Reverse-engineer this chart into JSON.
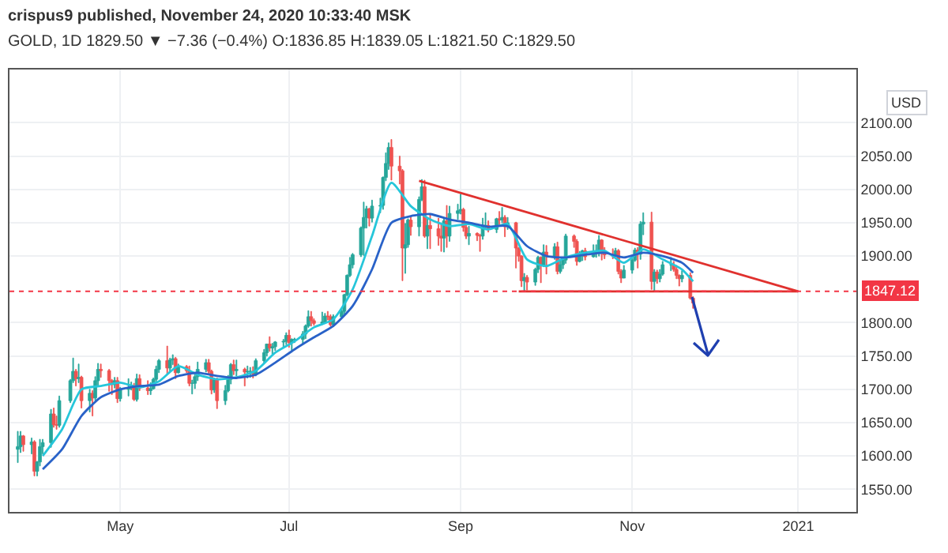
{
  "chart_data": {
    "type": "candlestick",
    "title": "crispus9 published, November 24, 2020 10:33:40 MSK",
    "subtitle": "GOLD, 1D 1829.50 ▼ −7.36 (−0.4%) O:1836.85 H:1839.05 L:1821.50 C:1829.50",
    "annotations": [
      "USD"
    ],
    "x": [
      "2020-03-25",
      "2020-03-26",
      "2020-03-27",
      "2020-03-30",
      "2020-03-31",
      "2020-04-01",
      "2020-04-02",
      "2020-04-03",
      "2020-04-06",
      "2020-04-07",
      "2020-04-08",
      "2020-04-09",
      "2020-04-13",
      "2020-04-14",
      "2020-04-15",
      "2020-04-16",
      "2020-04-17",
      "2020-04-20",
      "2020-04-21",
      "2020-04-22",
      "2020-04-23",
      "2020-04-24",
      "2020-04-27",
      "2020-04-28",
      "2020-04-29",
      "2020-04-30",
      "2020-05-01",
      "2020-05-04",
      "2020-05-05",
      "2020-05-06",
      "2020-05-07",
      "2020-05-08",
      "2020-05-11",
      "2020-05-12",
      "2020-05-13",
      "2020-05-14",
      "2020-05-15",
      "2020-05-18",
      "2020-05-19",
      "2020-05-20",
      "2020-05-21",
      "2020-05-22",
      "2020-05-25",
      "2020-05-26",
      "2020-05-27",
      "2020-05-28",
      "2020-05-29",
      "2020-06-01",
      "2020-06-02",
      "2020-06-03",
      "2020-06-04",
      "2020-06-05",
      "2020-06-08",
      "2020-06-09",
      "2020-06-10",
      "2020-06-11",
      "2020-06-12",
      "2020-06-15",
      "2020-06-16",
      "2020-06-17",
      "2020-06-18",
      "2020-06-19",
      "2020-06-22",
      "2020-06-23",
      "2020-06-24",
      "2020-06-25",
      "2020-06-26",
      "2020-06-29",
      "2020-06-30",
      "2020-07-01",
      "2020-07-02",
      "2020-07-03",
      "2020-07-06",
      "2020-07-07",
      "2020-07-08",
      "2020-07-09",
      "2020-07-10",
      "2020-07-13",
      "2020-07-14",
      "2020-07-15",
      "2020-07-16",
      "2020-07-17",
      "2020-07-20",
      "2020-07-21",
      "2020-07-22",
      "2020-07-23",
      "2020-07-24",
      "2020-07-27",
      "2020-07-28",
      "2020-07-29",
      "2020-07-30",
      "2020-07-31",
      "2020-08-03",
      "2020-08-04",
      "2020-08-05",
      "2020-08-06",
      "2020-08-07",
      "2020-08-10",
      "2020-08-11",
      "2020-08-12",
      "2020-08-13",
      "2020-08-14",
      "2020-08-17",
      "2020-08-18",
      "2020-08-19",
      "2020-08-20",
      "2020-08-21",
      "2020-08-24",
      "2020-08-25",
      "2020-08-26",
      "2020-08-27",
      "2020-08-28",
      "2020-08-31",
      "2020-09-01",
      "2020-09-02",
      "2020-09-03",
      "2020-09-04",
      "2020-09-07",
      "2020-09-08",
      "2020-09-09",
      "2020-09-10",
      "2020-09-11",
      "2020-09-14",
      "2020-09-15",
      "2020-09-16",
      "2020-09-17",
      "2020-09-18",
      "2020-09-21",
      "2020-09-22",
      "2020-09-23",
      "2020-09-24",
      "2020-09-25",
      "2020-09-28",
      "2020-09-29",
      "2020-09-30",
      "2020-10-01",
      "2020-10-02",
      "2020-10-05",
      "2020-10-06",
      "2020-10-07",
      "2020-10-08",
      "2020-10-09",
      "2020-10-12",
      "2020-10-13",
      "2020-10-14",
      "2020-10-15",
      "2020-10-16",
      "2020-10-19",
      "2020-10-20",
      "2020-10-21",
      "2020-10-22",
      "2020-10-23",
      "2020-10-26",
      "2020-10-27",
      "2020-10-28",
      "2020-10-29",
      "2020-10-30",
      "2020-11-02",
      "2020-11-03",
      "2020-11-04",
      "2020-11-05",
      "2020-11-06",
      "2020-11-09",
      "2020-11-10",
      "2020-11-11",
      "2020-11-12",
      "2020-11-13",
      "2020-11-16",
      "2020-11-17",
      "2020-11-18",
      "2020-11-19",
      "2020-11-20",
      "2020-11-23",
      "2020-11-24"
    ],
    "ohlc": [
      [
        1610,
        1637,
        1590,
        1614
      ],
      [
        1614,
        1637,
        1605,
        1630
      ],
      [
        1630,
        1631,
        1607,
        1617
      ],
      [
        1617,
        1627,
        1603,
        1621
      ],
      [
        1621,
        1623,
        1570,
        1577
      ],
      [
        1577,
        1592,
        1570,
        1591
      ],
      [
        1591,
        1625,
        1585,
        1614
      ],
      [
        1614,
        1625,
        1603,
        1620
      ],
      [
        1620,
        1670,
        1613,
        1663
      ],
      [
        1663,
        1672,
        1643,
        1647
      ],
      [
        1647,
        1660,
        1640,
        1646
      ],
      [
        1646,
        1690,
        1643,
        1683
      ],
      [
        1683,
        1715,
        1680,
        1713
      ],
      [
        1713,
        1747,
        1710,
        1727
      ],
      [
        1727,
        1730,
        1705,
        1716
      ],
      [
        1716,
        1738,
        1710,
        1718
      ],
      [
        1718,
        1720,
        1672,
        1683
      ],
      [
        1683,
        1700,
        1666,
        1694
      ],
      [
        1694,
        1698,
        1660,
        1687
      ],
      [
        1687,
        1719,
        1683,
        1713
      ],
      [
        1713,
        1739,
        1705,
        1730
      ],
      [
        1730,
        1738,
        1718,
        1728
      ],
      [
        1728,
        1730,
        1697,
        1713
      ],
      [
        1713,
        1715,
        1692,
        1707
      ],
      [
        1707,
        1718,
        1702,
        1713
      ],
      [
        1713,
        1718,
        1680,
        1686
      ],
      [
        1686,
        1703,
        1682,
        1700
      ],
      [
        1700,
        1716,
        1690,
        1702
      ],
      [
        1702,
        1711,
        1699,
        1705
      ],
      [
        1705,
        1709,
        1683,
        1685
      ],
      [
        1685,
        1723,
        1682,
        1716
      ],
      [
        1716,
        1722,
        1698,
        1702
      ],
      [
        1702,
        1713,
        1692,
        1698
      ],
      [
        1698,
        1710,
        1692,
        1701
      ],
      [
        1701,
        1717,
        1700,
        1715
      ],
      [
        1715,
        1735,
        1712,
        1730
      ],
      [
        1730,
        1745,
        1725,
        1743
      ],
      [
        1743,
        1765,
        1723,
        1732
      ],
      [
        1732,
        1747,
        1726,
        1744
      ],
      [
        1744,
        1752,
        1737,
        1746
      ],
      [
        1746,
        1748,
        1716,
        1725
      ],
      [
        1725,
        1738,
        1724,
        1734
      ],
      [
        1734,
        1736,
        1725,
        1728
      ],
      [
        1728,
        1735,
        1705,
        1709
      ],
      [
        1709,
        1714,
        1693,
        1709
      ],
      [
        1709,
        1722,
        1701,
        1719
      ],
      [
        1719,
        1741,
        1713,
        1730
      ],
      [
        1730,
        1745,
        1726,
        1740
      ],
      [
        1740,
        1745,
        1722,
        1727
      ],
      [
        1727,
        1729,
        1693,
        1699
      ],
      [
        1699,
        1717,
        1695,
        1714
      ],
      [
        1714,
        1717,
        1671,
        1683
      ],
      [
        1683,
        1706,
        1677,
        1698
      ],
      [
        1698,
        1721,
        1696,
        1715
      ],
      [
        1715,
        1739,
        1708,
        1737
      ],
      [
        1737,
        1744,
        1722,
        1728
      ],
      [
        1728,
        1744,
        1720,
        1730
      ],
      [
        1730,
        1732,
        1705,
        1726
      ],
      [
        1726,
        1735,
        1717,
        1727
      ],
      [
        1727,
        1733,
        1718,
        1727
      ],
      [
        1727,
        1734,
        1717,
        1723
      ],
      [
        1723,
        1746,
        1720,
        1743
      ],
      [
        1743,
        1760,
        1740,
        1755
      ],
      [
        1755,
        1768,
        1750,
        1768
      ],
      [
        1768,
        1779,
        1757,
        1762
      ],
      [
        1762,
        1769,
        1753,
        1764
      ],
      [
        1764,
        1772,
        1758,
        1771
      ],
      [
        1771,
        1775,
        1762,
        1772
      ],
      [
        1772,
        1785,
        1767,
        1781
      ],
      [
        1781,
        1789,
        1763,
        1770
      ],
      [
        1770,
        1776,
        1757,
        1775
      ],
      [
        1775,
        1777,
        1770,
        1775
      ],
      [
        1775,
        1787,
        1767,
        1783
      ],
      [
        1783,
        1797,
        1776,
        1795
      ],
      [
        1795,
        1818,
        1793,
        1809
      ],
      [
        1809,
        1817,
        1795,
        1803
      ],
      [
        1803,
        1806,
        1796,
        1799
      ],
      [
        1799,
        1816,
        1797,
        1801
      ],
      [
        1801,
        1814,
        1799,
        1810
      ],
      [
        1810,
        1817,
        1804,
        1809
      ],
      [
        1809,
        1812,
        1795,
        1797
      ],
      [
        1797,
        1812,
        1794,
        1809
      ],
      [
        1809,
        1820,
        1807,
        1817
      ],
      [
        1817,
        1843,
        1813,
        1842
      ],
      [
        1842,
        1872,
        1840,
        1871
      ],
      [
        1871,
        1898,
        1869,
        1887
      ],
      [
        1887,
        1904,
        1882,
        1902
      ],
      [
        1902,
        1944,
        1899,
        1942
      ],
      [
        1942,
        1981,
        1901,
        1958
      ],
      [
        1958,
        1975,
        1942,
        1971
      ],
      [
        1971,
        1972,
        1945,
        1957
      ],
      [
        1957,
        1984,
        1951,
        1975
      ],
      [
        1975,
        1987,
        1965,
        1976
      ],
      [
        1976,
        2019,
        1970,
        2018
      ],
      [
        2018,
        2055,
        2013,
        2039
      ],
      [
        2039,
        2070,
        2030,
        2063
      ],
      [
        2063,
        2075,
        2014,
        2035
      ],
      [
        2035,
        2050,
        2008,
        2028
      ],
      [
        2028,
        2030,
        1863,
        1912
      ],
      [
        1912,
        1949,
        1874,
        1917
      ],
      [
        1917,
        1956,
        1913,
        1954
      ],
      [
        1954,
        1959,
        1931,
        1944
      ],
      [
        1944,
        1989,
        1930,
        1985
      ],
      [
        1985,
        2015,
        1983,
        2004
      ],
      [
        2004,
        2014,
        1928,
        1930
      ],
      [
        1930,
        1956,
        1911,
        1946
      ],
      [
        1946,
        1964,
        1911,
        1941
      ],
      [
        1941,
        1957,
        1916,
        1930
      ],
      [
        1930,
        1949,
        1907,
        1927
      ],
      [
        1927,
        1958,
        1906,
        1953
      ],
      [
        1953,
        1976,
        1913,
        1930
      ],
      [
        1930,
        1975,
        1922,
        1964
      ],
      [
        1964,
        1978,
        1955,
        1968
      ],
      [
        1968,
        1993,
        1963,
        1970
      ],
      [
        1970,
        1972,
        1937,
        1943
      ],
      [
        1943,
        1951,
        1926,
        1930
      ],
      [
        1930,
        1945,
        1917,
        1934
      ],
      [
        1934,
        1935,
        1923,
        1931
      ],
      [
        1931,
        1933,
        1907,
        1930
      ],
      [
        1930,
        1957,
        1925,
        1946
      ],
      [
        1946,
        1965,
        1940,
        1946
      ],
      [
        1946,
        1953,
        1936,
        1940
      ],
      [
        1940,
        1957,
        1935,
        1956
      ],
      [
        1956,
        1967,
        1946,
        1954
      ],
      [
        1954,
        1973,
        1950,
        1958
      ],
      [
        1958,
        1961,
        1929,
        1944
      ],
      [
        1944,
        1958,
        1940,
        1950
      ],
      [
        1950,
        1951,
        1882,
        1912
      ],
      [
        1912,
        1913,
        1892,
        1900
      ],
      [
        1900,
        1901,
        1854,
        1863
      ],
      [
        1863,
        1874,
        1848,
        1868
      ],
      [
        1868,
        1871,
        1849,
        1861
      ],
      [
        1861,
        1882,
        1856,
        1880
      ],
      [
        1880,
        1900,
        1875,
        1898
      ],
      [
        1898,
        1899,
        1860,
        1886
      ],
      [
        1886,
        1917,
        1884,
        1906
      ],
      [
        1906,
        1916,
        1873,
        1900
      ],
      [
        1900,
        1919,
        1895,
        1914
      ],
      [
        1914,
        1921,
        1873,
        1877
      ],
      [
        1877,
        1895,
        1874,
        1887
      ],
      [
        1887,
        1898,
        1881,
        1894
      ],
      [
        1894,
        1933,
        1889,
        1930
      ],
      [
        1930,
        1932,
        1913,
        1922
      ],
      [
        1922,
        1925,
        1886,
        1892
      ],
      [
        1892,
        1907,
        1891,
        1902
      ],
      [
        1902,
        1909,
        1893,
        1908
      ],
      [
        1908,
        1912,
        1894,
        1899
      ],
      [
        1899,
        1917,
        1898,
        1905
      ],
      [
        1905,
        1917,
        1898,
        1907
      ],
      [
        1907,
        1931,
        1900,
        1924
      ],
      [
        1924,
        1925,
        1894,
        1904
      ],
      [
        1904,
        1913,
        1896,
        1902
      ],
      [
        1902,
        1911,
        1896,
        1901
      ],
      [
        1901,
        1912,
        1899,
        1908
      ],
      [
        1908,
        1910,
        1873,
        1877
      ],
      [
        1877,
        1880,
        1860,
        1867
      ],
      [
        1867,
        1886,
        1867,
        1879
      ],
      [
        1879,
        1896,
        1874,
        1894
      ],
      [
        1894,
        1912,
        1892,
        1909
      ],
      [
        1909,
        1913,
        1882,
        1903
      ],
      [
        1903,
        1952,
        1895,
        1948
      ],
      [
        1948,
        1965,
        1932,
        1951
      ],
      [
        1951,
        1966,
        1850,
        1862
      ],
      [
        1862,
        1880,
        1848,
        1876
      ],
      [
        1876,
        1879,
        1859,
        1866
      ],
      [
        1866,
        1880,
        1861,
        1873
      ],
      [
        1873,
        1892,
        1871,
        1887
      ],
      [
        1887,
        1898,
        1878,
        1887
      ],
      [
        1887,
        1892,
        1877,
        1880
      ],
      [
        1880,
        1886,
        1866,
        1871
      ],
      [
        1871,
        1872,
        1855,
        1866
      ],
      [
        1866,
        1878,
        1861,
        1871
      ],
      [
        1871,
        1875,
        1835,
        1837
      ],
      [
        1836.85,
        1839.05,
        1821.5,
        1829.5
      ]
    ],
    "series": [
      {
        "type": "line",
        "color": "#26c6da",
        "x": [
          "2020-04-03",
          "2020-04-10",
          "2020-04-17",
          "2020-04-24",
          "2020-05-01",
          "2020-05-08",
          "2020-05-15",
          "2020-05-22",
          "2020-05-29",
          "2020-06-05",
          "2020-06-12",
          "2020-06-19",
          "2020-06-26",
          "2020-07-03",
          "2020-07-10",
          "2020-07-17",
          "2020-07-24",
          "2020-07-31",
          "2020-08-07",
          "2020-08-14",
          "2020-08-21",
          "2020-08-28",
          "2020-09-04",
          "2020-09-11",
          "2020-09-18",
          "2020-09-25",
          "2020-10-02",
          "2020-10-09",
          "2020-10-16",
          "2020-10-23",
          "2020-10-30",
          "2020-11-06",
          "2020-11-13",
          "2020-11-20",
          "2020-11-24"
        ],
        "values": [
          1600,
          1640,
          1700,
          1705,
          1710,
          1703,
          1712,
          1735,
          1722,
          1715,
          1718,
          1728,
          1755,
          1772,
          1793,
          1805,
          1850,
          1930,
          2010,
          1975,
          1955,
          1945,
          1948,
          1940,
          1948,
          1895,
          1885,
          1898,
          1905,
          1908,
          1890,
          1910,
          1895,
          1880,
          1862
        ]
      },
      {
        "type": "line",
        "color": "#2962c8",
        "x": [
          "2020-04-03",
          "2020-04-10",
          "2020-04-17",
          "2020-04-24",
          "2020-05-01",
          "2020-05-08",
          "2020-05-15",
          "2020-05-22",
          "2020-05-29",
          "2020-06-05",
          "2020-06-12",
          "2020-06-19",
          "2020-06-26",
          "2020-07-03",
          "2020-07-10",
          "2020-07-17",
          "2020-07-24",
          "2020-07-31",
          "2020-08-07",
          "2020-08-14",
          "2020-08-21",
          "2020-08-28",
          "2020-09-04",
          "2020-09-11",
          "2020-09-18",
          "2020-09-25",
          "2020-10-02",
          "2020-10-09",
          "2020-10-16",
          "2020-10-23",
          "2020-10-30",
          "2020-11-06",
          "2020-11-13",
          "2020-11-20",
          "2020-11-24"
        ],
        "values": [
          1580,
          1610,
          1660,
          1688,
          1700,
          1705,
          1707,
          1720,
          1725,
          1720,
          1717,
          1722,
          1740,
          1760,
          1778,
          1795,
          1825,
          1880,
          1950,
          1960,
          1963,
          1955,
          1950,
          1944,
          1945,
          1915,
          1900,
          1898,
          1902,
          1905,
          1898,
          1905,
          1900,
          1890,
          1875
        ]
      },
      {
        "type": "line",
        "color": "#e0312e",
        "x": [
          "2020-08-17",
          "2021-01-01"
        ],
        "values": [
          2013,
          1847
        ]
      },
      {
        "type": "line",
        "color": "#e0312e",
        "x": [
          "2020-09-22",
          "2021-01-01"
        ],
        "values": [
          1847,
          1847
        ]
      }
    ],
    "ref_lines": [
      {
        "axis": "y",
        "value": 1847.12,
        "label": "1847.12",
        "color": "#f23645",
        "line_style": "dotted"
      }
    ],
    "xlim": [
      "2020-03-22",
      "2021-01-22"
    ],
    "xticks": [
      {
        "value": "2020-05-01",
        "label": "May"
      },
      {
        "value": "2020-07-01",
        "label": "Jul"
      },
      {
        "value": "2020-09-01",
        "label": "Sep"
      },
      {
        "value": "2020-11-02",
        "label": "Nov"
      },
      {
        "value": "2021-01-01",
        "label": "2021"
      }
    ],
    "ylim": [
      1516,
      2180
    ],
    "yticks": [
      {
        "value": 1550,
        "label": "1550.00"
      },
      {
        "value": 1600,
        "label": "1600.00"
      },
      {
        "value": 1650,
        "label": "1650.00"
      },
      {
        "value": 1700,
        "label": "1700.00"
      },
      {
        "value": 1750,
        "label": "1750.00"
      },
      {
        "value": 1800,
        "label": "1800.00"
      },
      {
        "value": 1900,
        "label": "1900.00"
      },
      {
        "value": 1950,
        "label": "1950.00"
      },
      {
        "value": 2000,
        "label": "2000.00"
      },
      {
        "value": 2050,
        "label": "2050.00"
      },
      {
        "value": 2100,
        "label": "2100.00"
      }
    ],
    "grid": true
  }
}
